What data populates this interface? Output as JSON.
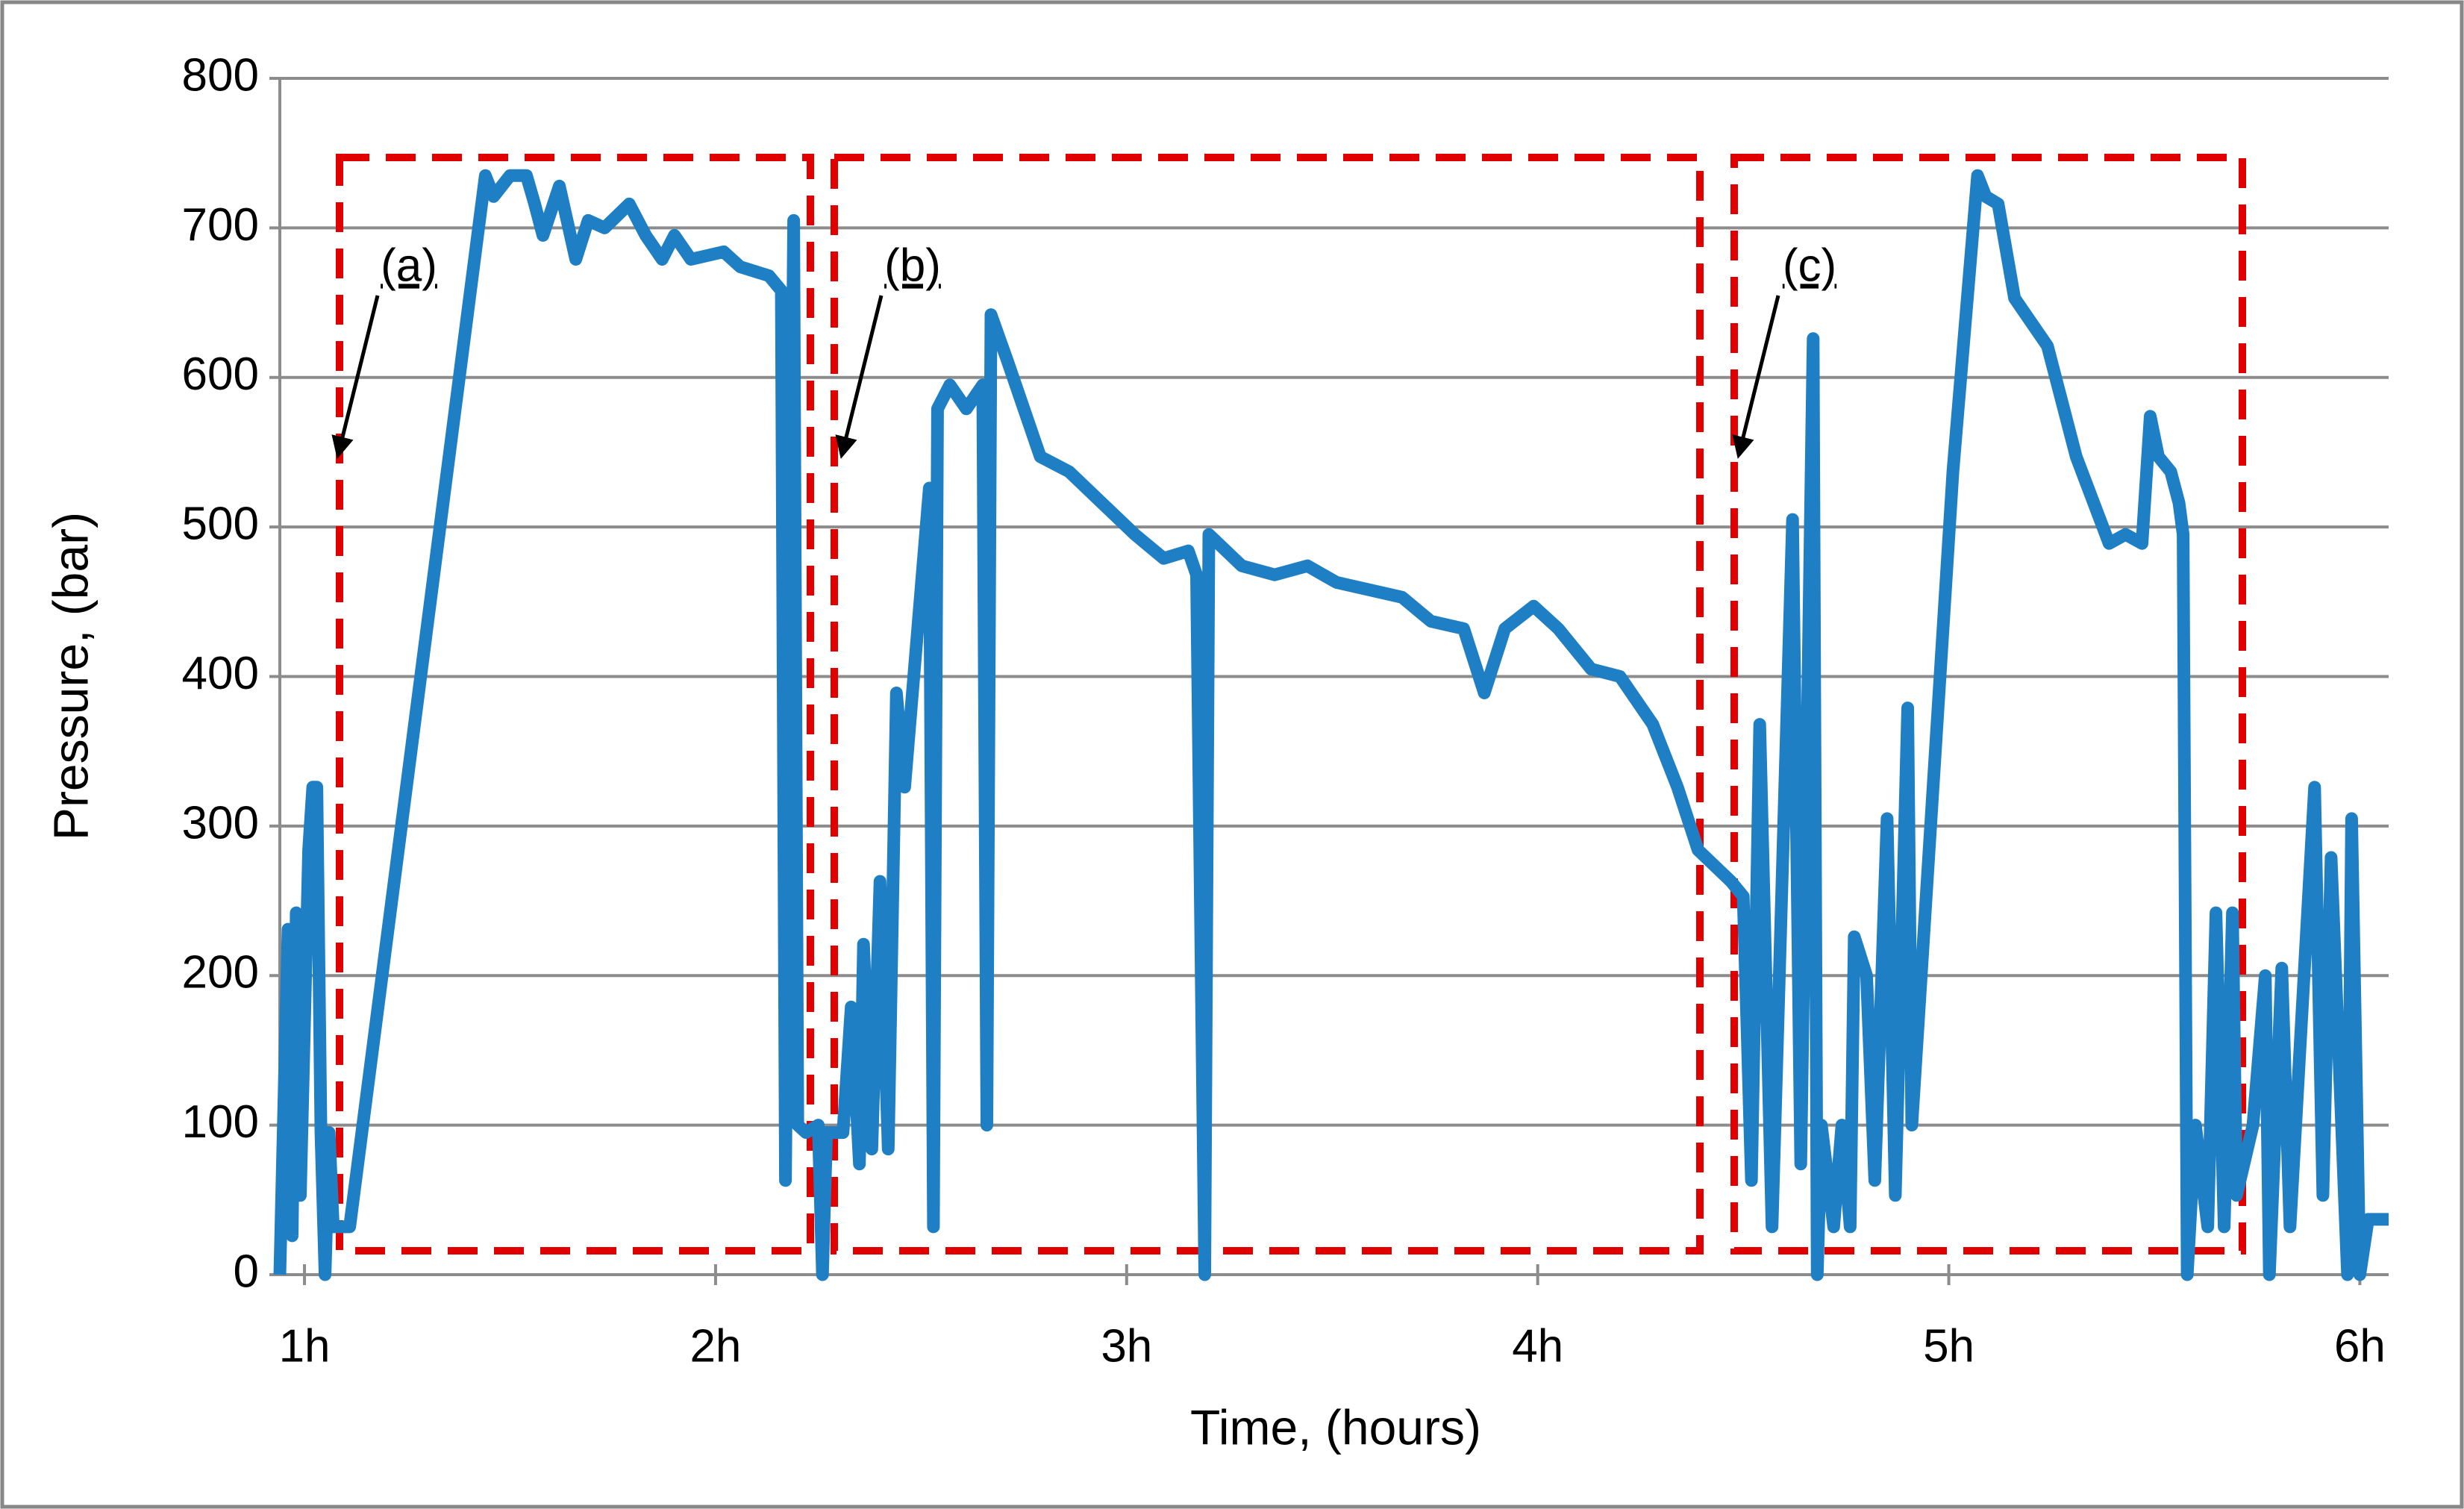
{
  "chart_data": {
    "type": "line",
    "xlabel": "Time, (hours)",
    "ylabel": "Pressure, (bar)",
    "x": [
      0.94,
      0.96,
      0.97,
      0.98,
      0.99,
      1.01,
      1.02,
      1.03,
      1.04,
      1.05,
      1.06,
      1.07,
      1.11,
      1.44,
      1.46,
      1.5,
      1.54,
      1.56,
      1.58,
      1.62,
      1.66,
      1.69,
      1.73,
      1.79,
      1.83,
      1.87,
      1.9,
      1.94,
      2.02,
      2.06,
      2.13,
      2.16,
      2.17,
      2.19,
      2.2,
      2.22,
      2.25,
      2.26,
      2.27,
      2.31,
      2.33,
      2.35,
      2.36,
      2.38,
      2.4,
      2.42,
      2.44,
      2.46,
      2.52,
      2.53,
      2.54,
      2.57,
      2.61,
      2.65,
      2.66,
      2.67,
      2.71,
      2.79,
      2.86,
      2.94,
      3.02,
      3.09,
      3.15,
      3.17,
      3.19,
      3.2,
      3.28,
      3.36,
      3.44,
      3.51,
      3.59,
      3.67,
      3.74,
      3.82,
      3.87,
      3.92,
      3.99,
      4.05,
      4.13,
      4.2,
      4.28,
      4.34,
      4.39,
      4.47,
      4.5,
      4.52,
      4.54,
      4.57,
      4.62,
      4.64,
      4.67,
      4.68,
      4.69,
      4.72,
      4.74,
      4.76,
      4.77,
      4.8,
      4.82,
      4.85,
      4.87,
      4.9,
      4.91,
      5.01,
      5.07,
      5.09,
      5.12,
      5.16,
      5.24,
      5.31,
      5.39,
      5.43,
      5.47,
      5.49,
      5.51,
      5.54,
      5.56,
      5.57,
      5.58,
      5.6,
      5.63,
      5.65,
      5.67,
      5.69,
      5.7,
      5.74,
      5.77,
      5.78,
      5.81,
      5.83,
      5.89,
      5.91,
      5.93,
      5.97,
      5.98,
      6.0,
      6.02,
      6.07
    ],
    "values": [
      0,
      231,
      26,
      242,
      53,
      284,
      326,
      326,
      95,
      0,
      95,
      32,
      32,
      735,
      721,
      735,
      735,
      716,
      695,
      728,
      679,
      705,
      700,
      716,
      695,
      679,
      695,
      679,
      684,
      674,
      668,
      658,
      63,
      705,
      100,
      95,
      100,
      0,
      95,
      95,
      179,
      74,
      221,
      84,
      263,
      84,
      389,
      326,
      526,
      32,
      579,
      595,
      579,
      595,
      100,
      642,
      611,
      547,
      537,
      516,
      495,
      479,
      484,
      468,
      0,
      495,
      474,
      468,
      474,
      463,
      458,
      453,
      437,
      432,
      389,
      432,
      447,
      432,
      405,
      400,
      368,
      326,
      284,
      263,
      253,
      63,
      368,
      32,
      505,
      74,
      626,
      0,
      100,
      32,
      100,
      32,
      226,
      200,
      63,
      305,
      53,
      379,
      100,
      537,
      735,
      721,
      716,
      653,
      621,
      547,
      489,
      495,
      489,
      574,
      547,
      537,
      516,
      495,
      0,
      100,
      32,
      242,
      32,
      242,
      53,
      100,
      200,
      0,
      205,
      32,
      326,
      53,
      279,
      0,
      305,
      0,
      37,
      37
    ],
    "color": "#1f7fc4",
    "xlim": [
      0.94,
      6.07
    ],
    "xticks": [
      {
        "value": 1,
        "label": "1h"
      },
      {
        "value": 2,
        "label": "2h"
      },
      {
        "value": 3,
        "label": "3h"
      },
      {
        "value": 4,
        "label": "4h"
      },
      {
        "value": 5,
        "label": "5h"
      },
      {
        "value": 6,
        "label": "6h"
      }
    ],
    "ylim": [
      0,
      800
    ],
    "yticks": [
      0,
      100,
      200,
      300,
      400,
      500,
      600,
      700,
      800
    ],
    "grid": true,
    "annotations": [
      "(a)",
      "(b)",
      "(c)"
    ]
  }
}
